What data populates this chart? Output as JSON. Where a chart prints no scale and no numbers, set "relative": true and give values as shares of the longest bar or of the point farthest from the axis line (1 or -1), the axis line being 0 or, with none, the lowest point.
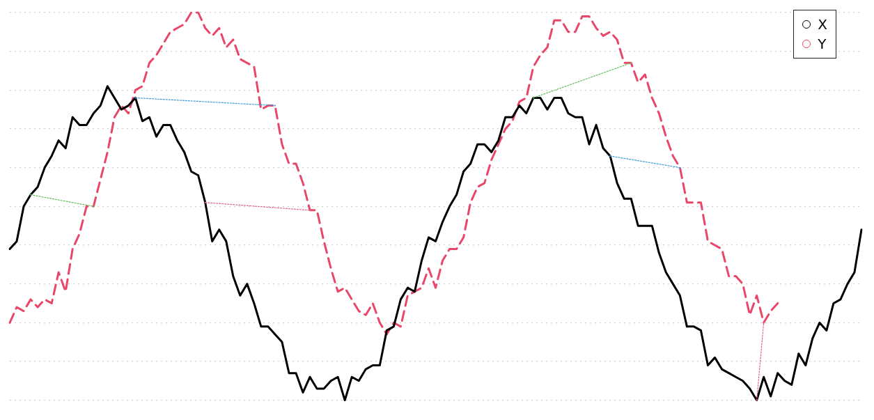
{
  "chart_data": {
    "type": "line",
    "relative": true,
    "grid": "y",
    "legend": "top right",
    "marker": "none",
    "categories": [
      null,
      null,
      null,
      null,
      null,
      null,
      null,
      null,
      null,
      null,
      null,
      null,
      null,
      null,
      null,
      null,
      null,
      null,
      null,
      null,
      null,
      null,
      null,
      null,
      null,
      null,
      null,
      null,
      null,
      null,
      null,
      null,
      null,
      null,
      null,
      null,
      null,
      null,
      null,
      null,
      null,
      null,
      null,
      null,
      null,
      null,
      null,
      null,
      null,
      null,
      null,
      null,
      null,
      null,
      null,
      null,
      null,
      null,
      null,
      null,
      null,
      null,
      null,
      null,
      null,
      null,
      null,
      null,
      null,
      null,
      null,
      null,
      null,
      null,
      null,
      null,
      null,
      null,
      null,
      null,
      null,
      null,
      null,
      null,
      null,
      null,
      null,
      null,
      null,
      null,
      null,
      null,
      null,
      null,
      null,
      null,
      null,
      null,
      null,
      null,
      null,
      null,
      null,
      null,
      null,
      null,
      null,
      null,
      null,
      null,
      null,
      null,
      null,
      null,
      null,
      null,
      null,
      null,
      null,
      null,
      null,
      null,
      null
    ],
    "series": [
      {
        "name": "X",
        "color": "#000000",
        "line_style": "solid",
        "values": [
          0.39,
          0.41,
          0.5,
          0.53,
          0.55,
          0.6,
          0.63,
          0.67,
          0.65,
          0.73,
          0.71,
          0.71,
          0.74,
          0.76,
          0.81,
          0.78,
          0.75,
          0.76,
          0.78,
          0.72,
          0.73,
          0.68,
          0.71,
          0.71,
          0.67,
          0.64,
          0.59,
          0.58,
          0.51,
          0.41,
          0.44,
          0.41,
          0.32,
          0.27,
          0.3,
          0.25,
          0.19,
          0.19,
          0.17,
          0.15,
          0.07,
          0.07,
          0.02,
          0.06,
          0.03,
          0.03,
          0.05,
          0.06,
          0.0,
          0.06,
          0.05,
          0.08,
          0.09,
          0.09,
          0.18,
          0.19,
          0.26,
          0.29,
          0.28,
          0.36,
          0.42,
          0.41,
          0.46,
          0.5,
          0.53,
          0.59,
          0.61,
          0.66,
          0.66,
          0.64,
          0.67,
          0.73,
          0.73,
          0.76,
          0.74,
          0.78,
          0.78,
          0.75,
          0.78,
          0.78,
          0.74,
          0.73,
          0.73,
          0.66,
          0.71,
          0.65,
          0.63,
          0.56,
          0.52,
          0.52,
          0.45,
          0.45,
          0.45,
          0.38,
          0.33,
          0.3,
          0.27,
          0.19,
          0.19,
          0.18,
          0.09,
          0.11,
          0.08,
          0.07,
          0.06,
          0.05,
          0.03,
          0.0,
          0.06,
          0.01,
          0.07,
          0.05,
          0.04,
          0.12,
          0.09,
          0.16,
          0.2,
          0.18,
          0.25,
          0.26,
          0.3,
          0.33,
          0.44
        ]
      },
      {
        "name": "Y",
        "color": "#e8476a",
        "line_style": "dashed",
        "values": [
          0.2,
          0.24,
          0.23,
          0.26,
          0.24,
          0.26,
          0.25,
          0.33,
          0.28,
          0.39,
          0.43,
          0.5,
          0.5,
          0.57,
          0.64,
          0.73,
          0.76,
          0.74,
          0.8,
          0.81,
          0.87,
          0.89,
          0.92,
          0.95,
          0.96,
          0.97,
          1.0,
          1.0,
          0.96,
          0.94,
          0.96,
          0.91,
          0.93,
          0.88,
          0.87,
          0.86,
          0.75,
          0.76,
          0.76,
          0.66,
          0.61,
          0.61,
          0.56,
          0.49,
          0.49,
          0.41,
          0.34,
          0.28,
          0.29,
          0.26,
          0.23,
          0.22,
          0.25,
          0.2,
          0.17,
          0.2,
          0.19,
          0.27,
          0.28,
          0.29,
          0.34,
          0.29,
          0.36,
          0.39,
          0.39,
          0.42,
          0.51,
          0.55,
          0.56,
          0.62,
          0.66,
          0.7,
          0.72,
          0.77,
          0.78,
          0.86,
          0.89,
          0.91,
          0.98,
          0.98,
          0.95,
          0.95,
          0.99,
          0.99,
          0.96,
          0.94,
          0.95,
          0.93,
          0.87,
          0.87,
          0.82,
          0.84,
          0.78,
          0.74,
          0.68,
          0.63,
          0.6,
          0.51,
          0.51,
          0.51,
          0.41,
          0.4,
          0.39,
          0.32,
          0.32,
          0.3,
          0.22,
          0.27,
          0.2,
          0.23,
          0.25,
          null,
          null,
          null,
          null,
          null,
          null,
          null,
          null,
          null,
          null,
          null,
          null
        ]
      },
      {
        "color": "#5cc05c",
        "line_style": "dotted",
        "values": [
          null,
          null,
          null,
          0.53,
          null,
          null,
          null,
          null,
          null,
          null,
          null,
          null,
          0.5,
          null,
          null,
          null,
          null,
          null,
          null,
          null,
          null,
          null,
          null,
          null,
          null,
          null,
          null,
          null,
          null,
          null,
          null,
          null,
          null,
          null,
          null,
          null,
          null,
          null,
          null,
          null,
          null,
          null,
          null,
          null,
          null,
          null,
          null,
          null,
          null,
          null,
          null,
          null,
          null,
          null,
          null,
          null,
          null,
          null,
          null,
          null,
          null,
          null,
          null,
          null,
          null,
          null,
          null,
          null,
          null,
          null,
          null,
          null,
          null,
          null,
          null,
          null,
          null,
          null,
          null,
          null,
          null,
          null,
          null,
          null,
          null,
          null,
          null,
          null,
          null,
          null,
          null,
          null,
          null,
          null,
          null,
          null,
          null,
          null,
          null,
          null,
          null,
          null,
          null,
          null,
          null,
          null,
          null,
          null,
          null,
          null,
          null,
          null,
          null,
          null,
          null,
          null,
          null,
          null,
          null,
          null,
          null,
          null,
          null
        ]
      },
      {
        "color": "#3a9ad9",
        "line_style": "dotted",
        "values": [
          null,
          null,
          null,
          null,
          null,
          null,
          null,
          null,
          null,
          null,
          null,
          null,
          null,
          null,
          null,
          null,
          null,
          null,
          0.78,
          null,
          null,
          null,
          null,
          null,
          null,
          null,
          null,
          null,
          null,
          null,
          null,
          null,
          null,
          null,
          null,
          null,
          null,
          null,
          0.76,
          null,
          null,
          null,
          null,
          null,
          null,
          null,
          null,
          null,
          null,
          null,
          null,
          null,
          null,
          null,
          null,
          null,
          null,
          null,
          null,
          null,
          null,
          null,
          null,
          null,
          null,
          null,
          null,
          null,
          null,
          null,
          null,
          null,
          null,
          null,
          null,
          null,
          null,
          null,
          null,
          null,
          null,
          null,
          null,
          null,
          null,
          null,
          null,
          null,
          null,
          null,
          null,
          null,
          null,
          null,
          null,
          null,
          null,
          null,
          null,
          null,
          null,
          null,
          null,
          null,
          null,
          null,
          null,
          null,
          null,
          null,
          null,
          null,
          null,
          null,
          null,
          null,
          null,
          null,
          null,
          null,
          null,
          null,
          null
        ]
      },
      {
        "color": "#e06680",
        "line_style": "dotted",
        "values": [
          null,
          null,
          null,
          null,
          null,
          null,
          null,
          null,
          null,
          null,
          null,
          null,
          null,
          null,
          null,
          null,
          null,
          null,
          null,
          null,
          null,
          null,
          null,
          null,
          null,
          null,
          null,
          null,
          0.51,
          null,
          null,
          null,
          null,
          null,
          null,
          null,
          null,
          null,
          null,
          null,
          null,
          null,
          null,
          0.49,
          null,
          null,
          null,
          null,
          null,
          null,
          null,
          null,
          null,
          null,
          null,
          null,
          null,
          null,
          null,
          null,
          null,
          null,
          null,
          null,
          null,
          null,
          null,
          null,
          null,
          null,
          null,
          null,
          null,
          null,
          null,
          null,
          null,
          null,
          null,
          null,
          null,
          null,
          null,
          null,
          null,
          null,
          null,
          null,
          null,
          null,
          null,
          null,
          null,
          null,
          null,
          null,
          null,
          null,
          null,
          null,
          null,
          null,
          null,
          null,
          null,
          null,
          null,
          null,
          null,
          null,
          null,
          null,
          null,
          null,
          null,
          null,
          null,
          null,
          null,
          null,
          null,
          null,
          null
        ]
      },
      {
        "color": "#5cc05c",
        "line_style": "dotted",
        "values": [
          null,
          null,
          null,
          null,
          null,
          null,
          null,
          null,
          null,
          null,
          null,
          null,
          null,
          null,
          null,
          null,
          null,
          null,
          null,
          null,
          null,
          null,
          null,
          null,
          null,
          null,
          null,
          null,
          null,
          null,
          null,
          null,
          null,
          null,
          null,
          null,
          null,
          null,
          null,
          null,
          null,
          null,
          null,
          null,
          null,
          null,
          null,
          null,
          null,
          null,
          null,
          null,
          null,
          null,
          null,
          null,
          null,
          null,
          null,
          null,
          null,
          null,
          null,
          null,
          null,
          null,
          null,
          null,
          null,
          null,
          null,
          null,
          null,
          null,
          null,
          0.78,
          null,
          null,
          null,
          null,
          null,
          null,
          null,
          null,
          null,
          null,
          null,
          null,
          null,
          0.87,
          null,
          null,
          null,
          null,
          null,
          null,
          null,
          null,
          null,
          null,
          null,
          null,
          null,
          null,
          null,
          null,
          null,
          null,
          null,
          null,
          null,
          null,
          null,
          null,
          null,
          null,
          null,
          null,
          null,
          null,
          null,
          null,
          null
        ]
      },
      {
        "color": "#3a9ad9",
        "line_style": "dotted",
        "values": [
          null,
          null,
          null,
          null,
          null,
          null,
          null,
          null,
          null,
          null,
          null,
          null,
          null,
          null,
          null,
          null,
          null,
          null,
          null,
          null,
          null,
          null,
          null,
          null,
          null,
          null,
          null,
          null,
          null,
          null,
          null,
          null,
          null,
          null,
          null,
          null,
          null,
          null,
          null,
          null,
          null,
          null,
          null,
          null,
          null,
          null,
          null,
          null,
          null,
          null,
          null,
          null,
          null,
          null,
          null,
          null,
          null,
          null,
          null,
          null,
          null,
          null,
          null,
          null,
          null,
          null,
          null,
          null,
          null,
          null,
          null,
          null,
          null,
          null,
          null,
          null,
          null,
          null,
          null,
          null,
          null,
          null,
          null,
          null,
          null,
          null,
          0.63,
          null,
          null,
          null,
          null,
          null,
          null,
          null,
          null,
          null,
          0.6,
          null,
          null,
          null,
          null,
          null,
          null,
          null,
          null,
          null,
          null,
          null,
          null,
          null,
          null,
          null,
          null,
          null,
          null,
          null,
          null,
          null,
          null,
          null,
          null,
          null,
          null
        ]
      },
      {
        "color": "#e06680",
        "line_style": "dotted",
        "values": [
          null,
          null,
          null,
          null,
          null,
          null,
          null,
          null,
          null,
          null,
          null,
          null,
          null,
          null,
          null,
          null,
          null,
          null,
          null,
          null,
          null,
          null,
          null,
          null,
          null,
          null,
          null,
          null,
          null,
          null,
          null,
          null,
          null,
          null,
          null,
          null,
          null,
          null,
          null,
          null,
          null,
          null,
          null,
          null,
          null,
          null,
          null,
          null,
          null,
          null,
          null,
          null,
          null,
          null,
          null,
          null,
          null,
          null,
          null,
          null,
          null,
          null,
          null,
          null,
          null,
          null,
          null,
          null,
          null,
          null,
          null,
          null,
          null,
          null,
          null,
          null,
          null,
          null,
          null,
          null,
          null,
          null,
          null,
          null,
          null,
          null,
          null,
          null,
          null,
          null,
          null,
          null,
          null,
          null,
          null,
          null,
          null,
          null,
          null,
          null,
          null,
          null,
          null,
          null,
          null,
          null,
          null,
          0.0,
          0.2,
          null,
          null,
          null,
          null,
          null,
          null,
          null,
          null,
          null,
          null,
          null,
          null,
          null,
          null
        ]
      }
    ]
  }
}
